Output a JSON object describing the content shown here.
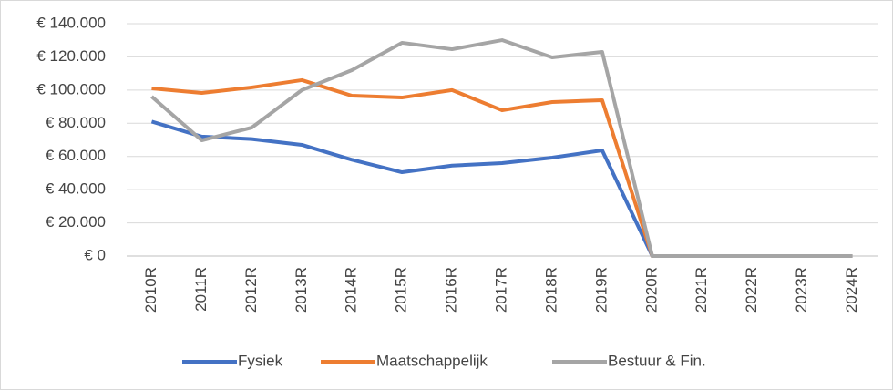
{
  "chart_data": {
    "type": "line",
    "categories": [
      "2010R",
      "2011R",
      "2012R",
      "2013R",
      "2014R",
      "2015R",
      "2016R",
      "2017R",
      "2018R",
      "2019R",
      "2020R",
      "2021R",
      "2022R",
      "2023R",
      "2024R"
    ],
    "series": [
      {
        "name": "Fysiek",
        "color": "#4472c4",
        "values": [
          81000,
          72000,
          70500,
          67000,
          58000,
          50500,
          54500,
          56000,
          59300,
          63700,
          0,
          0,
          0,
          0,
          0
        ]
      },
      {
        "name": "Maatschappelijk",
        "color": "#ed7d31",
        "values": [
          101000,
          98300,
          101600,
          106000,
          96600,
          95500,
          100000,
          87800,
          92800,
          93900,
          0,
          0,
          0,
          0,
          0
        ]
      },
      {
        "name": "Bestuur & Fin.",
        "color": "#a5a5a5",
        "values": [
          96100,
          69700,
          77400,
          100000,
          112000,
          128500,
          124600,
          130100,
          119700,
          123000,
          0,
          0,
          0,
          0,
          0
        ]
      }
    ],
    "ylim": [
      0,
      140000
    ],
    "yticks": [
      {
        "value": 0,
        "label": "€ 0"
      },
      {
        "value": 20000,
        "label": "€ 20.000"
      },
      {
        "value": 40000,
        "label": "€ 40.000"
      },
      {
        "value": 60000,
        "label": "€ 60.000"
      },
      {
        "value": 80000,
        "label": "€ 80.000"
      },
      {
        "value": 100000,
        "label": "€ 100.000"
      },
      {
        "value": 120000,
        "label": "€ 120.000"
      },
      {
        "value": 140000,
        "label": "€ 140.000"
      }
    ],
    "grid": true,
    "legend": "bottom"
  }
}
